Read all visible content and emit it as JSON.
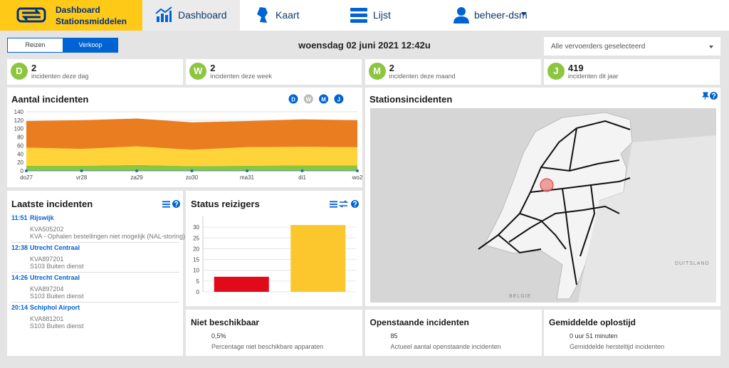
{
  "header": {
    "title": "Dashboard",
    "subtitle": "Stationsmiddelen",
    "nav": [
      "Dashboard",
      "Kaart",
      "Lijst"
    ],
    "user": "beheer-dsm"
  },
  "toolbar": {
    "modes": [
      "Reizen",
      "Verkoop"
    ],
    "datetime": "woensdag 02 juni 2021 12:42u",
    "carrier": "Alle vervoerders geselecteerd"
  },
  "kpis": [
    {
      "letter": "D",
      "value": 2,
      "label": "incidenten deze dag"
    },
    {
      "letter": "W",
      "value": 2,
      "label": "incidenten deze week"
    },
    {
      "letter": "M",
      "value": 2,
      "label": "incidenten deze maand"
    },
    {
      "letter": "J",
      "value": 419,
      "label": "incidenten dit jaar"
    }
  ],
  "chart_data": [
    {
      "type": "area",
      "title": "Aantal incidenten",
      "periods": [
        "D",
        "W",
        "M",
        "J"
      ],
      "categories": [
        "do27",
        "vr28",
        "za29",
        "zo30",
        "ma31",
        "di1",
        "wo2"
      ],
      "series": [
        {
          "color": "#8cc63f",
          "values": [
            12,
            12,
            14,
            11,
            12,
            13,
            13
          ]
        },
        {
          "color": "#ffd43b",
          "values": [
            43,
            40,
            44,
            39,
            44,
            44,
            43
          ]
        },
        {
          "color": "#ea7d1f",
          "values": [
            63,
            68,
            66,
            65,
            62,
            65,
            64
          ]
        }
      ],
      "stacked": true,
      "ylim": [
        0,
        140
      ],
      "yticks": [
        0,
        20,
        40,
        60,
        80,
        100,
        120,
        140
      ],
      "grid": true
    },
    {
      "type": "bar",
      "title": "Status reizigers",
      "categories": [
        null,
        null
      ],
      "values": [
        7,
        31
      ],
      "colors": [
        "#e00a1a",
        "#fcc72c"
      ],
      "ylim": [
        0,
        35
      ],
      "yticks": [
        0,
        5,
        10,
        15,
        20,
        25,
        30
      ],
      "grid": true
    }
  ],
  "latest_incidents": {
    "title": "Laatste incidenten",
    "items": [
      {
        "time": "11:51",
        "station": "Rijswijk",
        "code": "KVA505202",
        "description": "KVA - Ophalen bestellingen niet mogelijk (NAL-storing)"
      },
      {
        "time": "12:38",
        "station": "Utrecht Centraal",
        "code": "KVA897201",
        "description": "S103 Buiten dienst"
      },
      {
        "time": "14:26",
        "station": "Utrecht Centraal",
        "code": "KVA897204",
        "description": "S103 Buiten dienst"
      },
      {
        "time": "20:14",
        "station": "Schiphol Airport",
        "code": "KVA881201",
        "description": "S103 Buiten dienst"
      }
    ]
  },
  "map": {
    "title": "Stationsincidenten",
    "labels": [
      "DUITSLAND",
      "BELGIE"
    ]
  },
  "stats": [
    {
      "title": "Niet beschikbaar",
      "value": "0,5%",
      "label": "Percentage niet beschikbare apparaten"
    },
    {
      "title": "Openstaande incidenten",
      "value": "85",
      "label": "Actueel aantal openstaande incidenten"
    },
    {
      "title": "Gemiddelde oplostijd",
      "value": "0 uur 51 minuten",
      "label": "Gemiddelde hersteltijd incidenten"
    }
  ]
}
